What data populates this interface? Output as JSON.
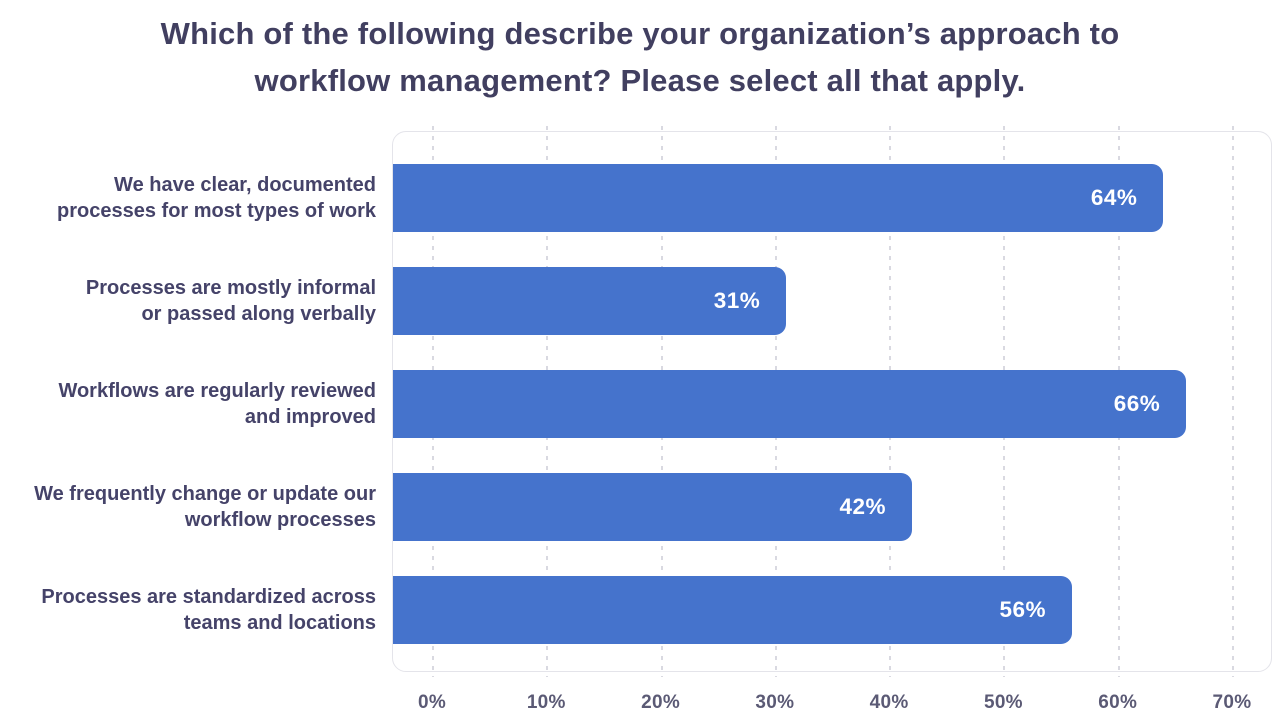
{
  "page": {
    "title": {
      "line1": "Which of the following describe your organization’s approach to",
      "line2": "workflow management? Please select all that apply."
    }
  },
  "chart_data": {
    "type": "bar",
    "orientation": "horizontal",
    "title": "Which of the following describe your organization’s approach to workflow management? Please select all that apply.",
    "categories": [
      "We have clear, documented processes for most types of work",
      "Processes are mostly informal or passed along verbally",
      "Workflows are regularly reviewed and improved",
      "We frequently change or update our workflow processes",
      "Processes are standardized across teams and locations"
    ],
    "category_lines": [
      [
        "We have clear, documented",
        "processes for most types of work"
      ],
      [
        "Processes are mostly informal",
        "or passed along verbally"
      ],
      [
        "Workflows are regularly reviewed",
        "and improved"
      ],
      [
        "We frequently change or update our",
        "workflow processes"
      ],
      [
        "Processes are standardized across",
        "teams and locations"
      ]
    ],
    "values": [
      64,
      31,
      66,
      42,
      56
    ],
    "value_suffix": "%",
    "value_labels": [
      "64%",
      "31%",
      "66%",
      "42%",
      "56%"
    ],
    "xticks": [
      "0%",
      "10%",
      "20%",
      "30%",
      "40%",
      "50%",
      "60%",
      "70%"
    ],
    "xlim": [
      0,
      70
    ],
    "xlabel": "",
    "ylabel": "",
    "grid": "vertical-dashed",
    "legend": "none",
    "theme": {
      "bar_color": "#4573cc",
      "title_color": "#413f60",
      "category_label_color": "#454369",
      "tick_label_color": "#5b5a75",
      "grid_color": "#d9d9e1",
      "card_border_color": "#e4e4ea",
      "value_label_color": "#ffffff",
      "background_color": "#ffffff"
    }
  }
}
